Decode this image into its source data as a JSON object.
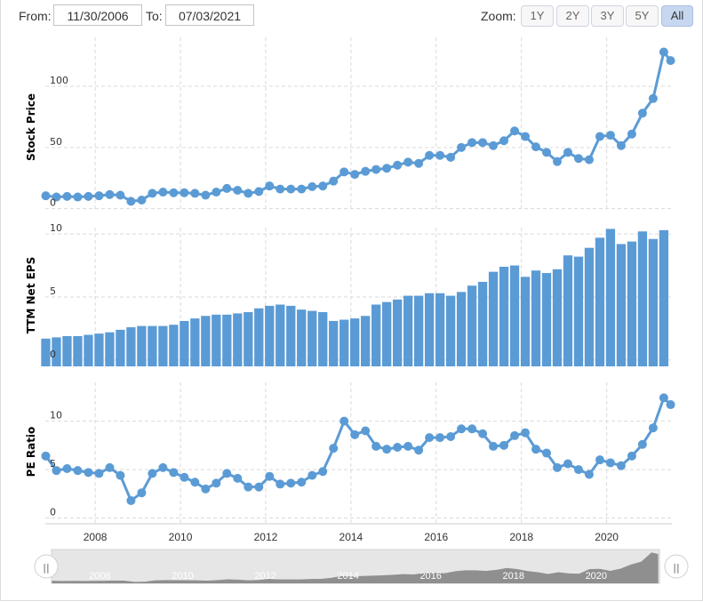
{
  "controls": {
    "from_label": "From:",
    "from_value": "11/30/2006",
    "to_label": "To:",
    "to_value": "07/03/2021",
    "zoom_label": "Zoom:",
    "zoom_buttons": [
      "1Y",
      "2Y",
      "3Y",
      "5Y",
      "All"
    ],
    "zoom_active": "All"
  },
  "colors": {
    "series": "#5b9bd5",
    "grid": "#d9d9d9",
    "navigator": "#8f8f8f"
  },
  "chart_data": [
    {
      "type": "line",
      "ylabel": "Stock Price",
      "ylim": [
        -1,
        140
      ],
      "yticks": [
        0,
        50,
        100
      ],
      "x": [
        2006.84,
        2007.09,
        2007.34,
        2007.59,
        2007.84,
        2008.09,
        2008.34,
        2008.59,
        2008.84,
        2009.09,
        2009.34,
        2009.59,
        2009.84,
        2010.09,
        2010.34,
        2010.59,
        2010.84,
        2011.09,
        2011.34,
        2011.59,
        2011.84,
        2012.09,
        2012.34,
        2012.59,
        2012.84,
        2013.09,
        2013.34,
        2013.59,
        2013.84,
        2014.09,
        2014.34,
        2014.59,
        2014.84,
        2015.09,
        2015.34,
        2015.59,
        2015.84,
        2016.09,
        2016.34,
        2016.59,
        2016.84,
        2017.09,
        2017.34,
        2017.59,
        2017.84,
        2018.09,
        2018.34,
        2018.59,
        2018.84,
        2019.09,
        2019.34,
        2019.59,
        2019.84,
        2020.09,
        2020.34,
        2020.59,
        2020.84,
        2021.09,
        2021.34,
        2021.5
      ],
      "values": [
        10.5,
        9.5,
        10,
        9.5,
        10,
        10.5,
        11.5,
        11,
        6,
        7,
        12.5,
        13.5,
        13,
        13,
        12.5,
        11,
        13.5,
        16.5,
        15,
        12.5,
        14,
        18.5,
        16,
        16,
        16,
        18,
        18.5,
        22.5,
        30,
        28,
        30.5,
        32,
        33,
        35.5,
        38,
        37,
        43.5,
        43.5,
        42,
        50,
        54,
        54,
        51.5,
        55.5,
        63.5,
        59,
        50.5,
        46,
        38.5,
        46,
        41,
        40,
        59,
        60,
        51.5,
        61,
        78,
        90,
        128,
        121
      ]
    },
    {
      "type": "bar",
      "ylabel": "TTM Net EPS",
      "ylim": [
        -0.5,
        10.5
      ],
      "yticks": [
        0,
        5,
        10
      ],
      "x": [
        2006.84,
        2007.09,
        2007.34,
        2007.59,
        2007.84,
        2008.09,
        2008.34,
        2008.59,
        2008.84,
        2009.09,
        2009.34,
        2009.59,
        2009.84,
        2010.09,
        2010.34,
        2010.59,
        2010.84,
        2011.09,
        2011.34,
        2011.59,
        2011.84,
        2012.09,
        2012.34,
        2012.59,
        2012.84,
        2013.09,
        2013.34,
        2013.59,
        2013.84,
        2014.09,
        2014.34,
        2014.59,
        2014.84,
        2015.09,
        2015.34,
        2015.59,
        2015.84,
        2016.09,
        2016.34,
        2016.59,
        2016.84,
        2017.09,
        2017.34,
        2017.59,
        2017.84,
        2018.09,
        2018.34,
        2018.59,
        2018.84,
        2019.09,
        2019.34,
        2019.59,
        2019.84,
        2020.09,
        2020.34,
        2020.59,
        2020.84,
        2021.09,
        2021.34,
        2021.5
      ],
      "values": [
        1.7,
        1.8,
        1.9,
        1.9,
        2.0,
        2.1,
        2.2,
        2.4,
        2.6,
        2.7,
        2.7,
        2.7,
        2.8,
        3.1,
        3.3,
        3.5,
        3.6,
        3.6,
        3.7,
        3.8,
        4.1,
        4.3,
        4.4,
        4.3,
        4.0,
        3.9,
        3.8,
        3.1,
        3.2,
        3.3,
        3.5,
        4.4,
        4.6,
        4.8,
        5.1,
        5.1,
        5.3,
        5.3,
        5.1,
        5.4,
        5.9,
        6.2,
        7.0,
        7.4,
        7.5,
        6.6,
        7.1,
        6.9,
        7.2,
        8.3,
        8.2,
        8.9,
        9.7,
        10.4,
        9.2,
        9.4,
        10.2,
        9.6,
        10.3,
        0
      ]
    },
    {
      "type": "line",
      "ylabel": "PE Ratio",
      "ylim": [
        -0.5,
        14
      ],
      "yticks": [
        0,
        5,
        10
      ],
      "x": [
        2006.84,
        2007.09,
        2007.34,
        2007.59,
        2007.84,
        2008.09,
        2008.34,
        2008.59,
        2008.84,
        2009.09,
        2009.34,
        2009.59,
        2009.84,
        2010.09,
        2010.34,
        2010.59,
        2010.84,
        2011.09,
        2011.34,
        2011.59,
        2011.84,
        2012.09,
        2012.34,
        2012.59,
        2012.84,
        2013.09,
        2013.34,
        2013.59,
        2013.84,
        2014.09,
        2014.34,
        2014.59,
        2014.84,
        2015.09,
        2015.34,
        2015.59,
        2015.84,
        2016.09,
        2016.34,
        2016.59,
        2016.84,
        2017.09,
        2017.34,
        2017.59,
        2017.84,
        2018.09,
        2018.34,
        2018.59,
        2018.84,
        2019.09,
        2019.34,
        2019.59,
        2019.84,
        2020.09,
        2020.34,
        2020.59,
        2020.84,
        2021.09,
        2021.34,
        2021.5
      ],
      "values": [
        6.4,
        4.9,
        5.1,
        4.9,
        4.7,
        4.6,
        5.2,
        4.4,
        1.8,
        2.6,
        4.6,
        5.2,
        4.7,
        4.2,
        3.7,
        3.0,
        3.6,
        4.6,
        4.1,
        3.2,
        3.2,
        4.3,
        3.5,
        3.6,
        3.7,
        4.4,
        4.8,
        7.2,
        10.0,
        8.6,
        9.0,
        7.4,
        7.1,
        7.3,
        7.4,
        7.0,
        8.3,
        8.3,
        8.4,
        9.2,
        9.2,
        8.7,
        7.4,
        7.5,
        8.5,
        8.8,
        7.1,
        6.7,
        5.2,
        5.6,
        5.0,
        4.5,
        6.0,
        5.7,
        5.4,
        6.4,
        7.6,
        9.3,
        12.4,
        11.7
      ]
    }
  ],
  "xaxis": {
    "ticks": [
      "2008",
      "2010",
      "2012",
      "2014",
      "2016",
      "2018",
      "2020"
    ]
  },
  "navigator": {
    "ticks": [
      "2008",
      "2010",
      "2012",
      "2014",
      "2016",
      "2018",
      "2020"
    ],
    "handle_glyph": "||"
  }
}
